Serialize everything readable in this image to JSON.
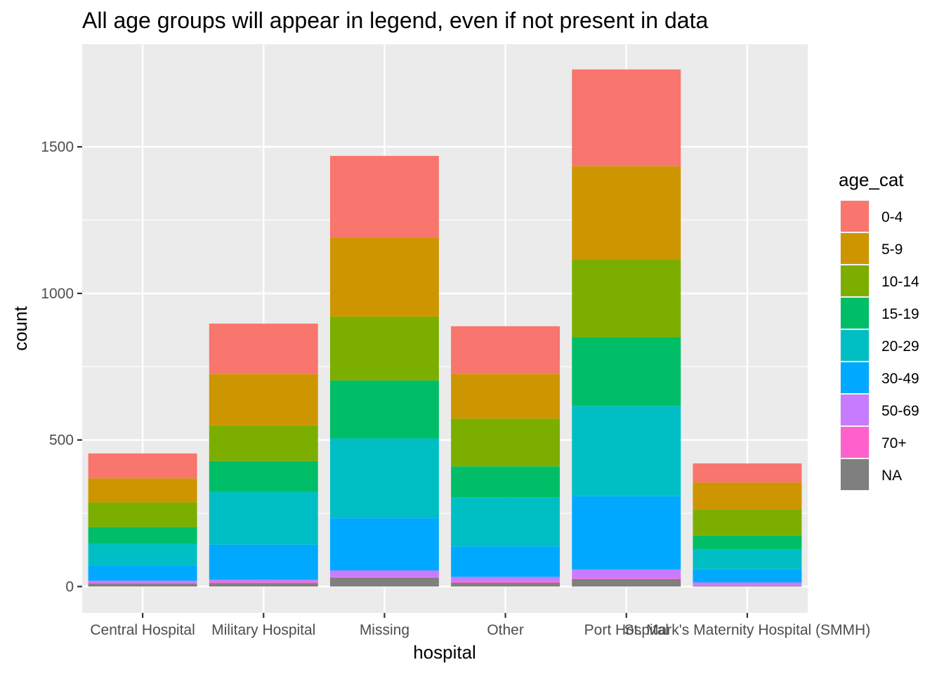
{
  "chart_data": {
    "type": "bar",
    "stacked": true,
    "title": "All age groups will appear in legend, even if not present in data",
    "xlabel": "hospital",
    "ylabel": "count",
    "ylim": [
      -90,
      1850
    ],
    "yticks": [
      0,
      500,
      1000,
      1500
    ],
    "grid": true,
    "legend_position": "right",
    "legend_title": "age_cat",
    "categories": [
      "Central Hospital",
      "Military Hospital",
      "Missing",
      "Other",
      "Port Hospital",
      "St. Mark's Maternity Hospital (SMMH)"
    ],
    "series": [
      {
        "name": "NA",
        "color": "#7f7f7f",
        "values": [
          10,
          12,
          30,
          13,
          25,
          2
        ]
      },
      {
        "name": "70+",
        "color": "#ff61cc",
        "values": [
          3,
          3,
          3,
          3,
          3,
          3
        ]
      },
      {
        "name": "50-69",
        "color": "#c77cff",
        "values": [
          7,
          8,
          22,
          17,
          30,
          9
        ]
      },
      {
        "name": "30-49",
        "color": "#00a9ff",
        "values": [
          52,
          120,
          178,
          104,
          250,
          45
        ]
      },
      {
        "name": "20-29",
        "color": "#00bfc4",
        "values": [
          73,
          180,
          272,
          168,
          308,
          68
        ]
      },
      {
        "name": "15-19",
        "color": "#00be67",
        "values": [
          58,
          105,
          198,
          105,
          235,
          47
        ]
      },
      {
        "name": "10-14",
        "color": "#7cae00",
        "values": [
          84,
          122,
          218,
          163,
          265,
          88
        ]
      },
      {
        "name": "5-9",
        "color": "#cd9600",
        "values": [
          82,
          175,
          268,
          152,
          318,
          93
        ]
      },
      {
        "name": "0-4",
        "color": "#f8766d",
        "values": [
          85,
          172,
          280,
          163,
          330,
          65
        ]
      }
    ]
  }
}
